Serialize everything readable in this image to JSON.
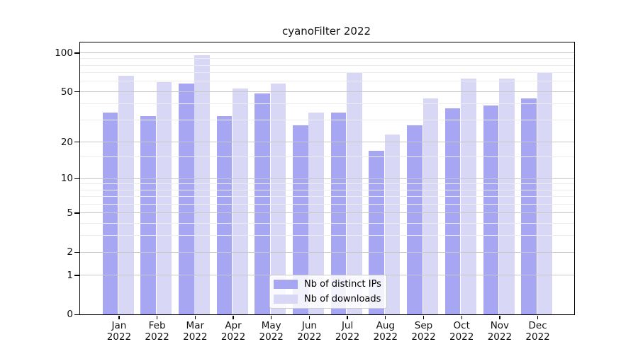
{
  "chart_data": {
    "type": "bar",
    "title": "cyanoFilter 2022",
    "x_categories": [
      "Jan",
      "Feb",
      "Mar",
      "Apr",
      "May",
      "Jun",
      "Jul",
      "Aug",
      "Sep",
      "Oct",
      "Nov",
      "Dec"
    ],
    "x_year": "2022",
    "series": [
      {
        "name": "Nb of distinct IPs",
        "color": "#a6a6f2",
        "values": [
          34,
          32,
          58,
          32,
          48,
          27,
          34,
          17,
          27,
          37,
          39,
          44
        ]
      },
      {
        "name": "Nb of downloads",
        "color": "#d8d8f6",
        "values": [
          66,
          59,
          96,
          53,
          58,
          34,
          70,
          23,
          44,
          63,
          63,
          71
        ]
      }
    ],
    "yscale": "log1p",
    "y_ticks": [
      0,
      1,
      2,
      5,
      10,
      20,
      50,
      100
    ],
    "y_minor_gridlines": [
      3,
      4,
      6,
      7,
      8,
      9,
      15,
      30,
      40,
      60,
      70,
      80,
      90
    ],
    "ylim": [
      0,
      120
    ],
    "xlabel": "",
    "ylabel": "",
    "grid": true,
    "legend_position": "lower center"
  },
  "colors": {
    "grid_major": "#c8c8c8",
    "grid_minor": "#ececec",
    "axis": "#000000",
    "background": "#ffffff",
    "legend_border": "#cccccc"
  }
}
